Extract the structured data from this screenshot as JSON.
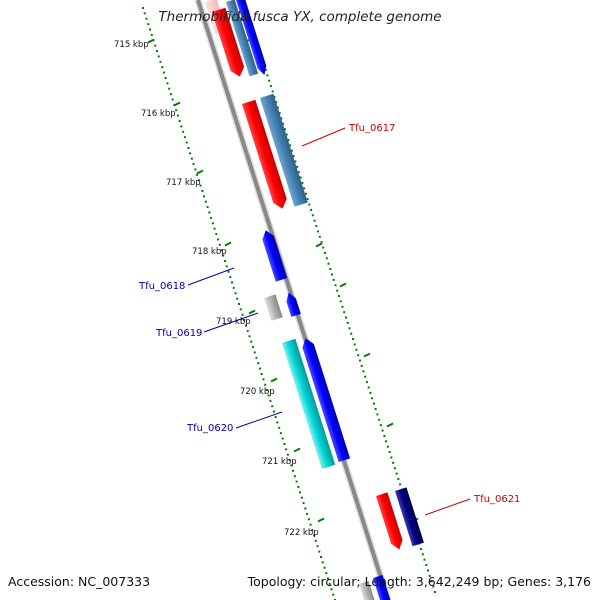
{
  "title": "Thermobifida fusca YX, complete genome",
  "footer": {
    "accession": "Accession: NC_007333",
    "topology": "Topology: circular; Length: 3,642,249 bp; Genes: 3,176"
  },
  "ruler_labels": [
    "715 kbp",
    "716 kbp",
    "717 kbp",
    "718 kbp",
    "719 kbp",
    "720 kbp",
    "721 kbp",
    "722 kbp"
  ],
  "gene_labels": [
    {
      "id": "Tfu_0617",
      "text": "Tfu_0617",
      "color": "#cc0000"
    },
    {
      "id": "Tfu_0618",
      "text": "Tfu_0618",
      "color": "#0000aa"
    },
    {
      "id": "Tfu_0619",
      "text": "Tfu_0619",
      "color": "#0000aa"
    },
    {
      "id": "Tfu_0620",
      "text": "Tfu_0620",
      "color": "#0000aa"
    },
    {
      "id": "Tfu_0621",
      "text": "Tfu_0621",
      "color": "#cc0000"
    }
  ],
  "colors": {
    "backbone": "#888888",
    "ruler_ticks": "#007a00",
    "gene_red": "#ff0000",
    "gene_steelblue": "#4682b4",
    "gene_blue": "#0000ff",
    "gene_cyan": "#00cccc",
    "gene_grey": "#aaaaaa",
    "gene_navy": "#000080"
  }
}
